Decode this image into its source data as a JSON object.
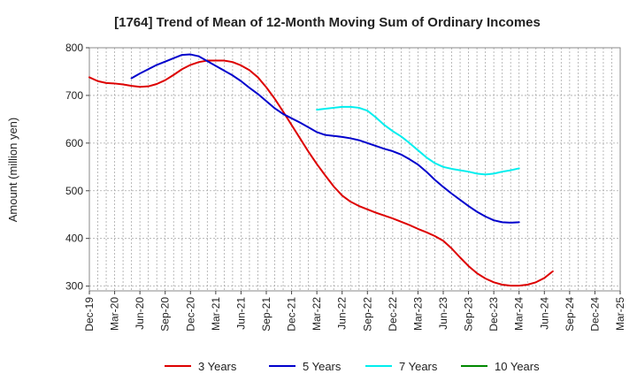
{
  "chart_data": {
    "type": "line",
    "title": "[1764]  Trend of Mean of 12-Month Moving Sum of Ordinary Incomes",
    "xlabel": "",
    "ylabel": "Amount (million yen)",
    "ylim": [
      290,
      800
    ],
    "yticks": [
      300,
      400,
      500,
      600,
      700,
      800
    ],
    "x_ticks": [
      "Dec-19",
      "Mar-20",
      "Jun-20",
      "Sep-20",
      "Dec-20",
      "Mar-21",
      "Jun-21",
      "Sep-21",
      "Dec-21",
      "Mar-22",
      "Jun-22",
      "Sep-22",
      "Dec-22",
      "Mar-23",
      "Jun-23",
      "Sep-23",
      "Dec-23",
      "Mar-24",
      "Jun-24",
      "Sep-24",
      "Dec-24",
      "Mar-25"
    ],
    "grid": true,
    "legend_position": "bottom",
    "series": [
      {
        "name": "3 Years",
        "color": "#dd0000",
        "values": [
          738,
          730,
          726,
          725,
          723,
          720,
          718,
          719,
          724,
          732,
          743,
          755,
          764,
          770,
          773,
          773,
          773,
          770,
          763,
          753,
          738,
          717,
          693,
          666,
          638,
          610,
          582,
          556,
          532,
          509,
          490,
          477,
          468,
          461,
          454,
          448,
          442,
          435,
          428,
          420,
          413,
          405,
          395,
          379,
          360,
          342,
          327,
          316,
          308,
          303,
          301,
          301,
          303,
          308,
          317,
          331
        ]
      },
      {
        "name": "5 Years",
        "color": "#0000cc",
        "values": [
          null,
          null,
          null,
          null,
          null,
          736,
          746,
          755,
          764,
          771,
          778,
          785,
          786,
          782,
          772,
          762,
          752,
          742,
          730,
          716,
          703,
          688,
          673,
          661,
          652,
          643,
          633,
          623,
          617,
          615,
          613,
          610,
          606,
          600,
          594,
          588,
          583,
          576,
          566,
          555,
          540,
          523,
          508,
          494,
          481,
          468,
          456,
          446,
          438,
          434,
          433,
          434
        ]
      },
      {
        "name": "7 Years",
        "color": "#00eeee",
        "values": [
          null,
          null,
          null,
          null,
          null,
          null,
          null,
          null,
          null,
          null,
          null,
          null,
          null,
          null,
          null,
          null,
          null,
          null,
          null,
          null,
          null,
          null,
          null,
          null,
          null,
          null,
          null,
          670,
          672,
          674,
          676,
          676,
          674,
          668,
          654,
          638,
          625,
          614,
          600,
          585,
          570,
          558,
          550,
          546,
          543,
          540,
          536,
          534,
          536,
          540,
          543,
          547
        ]
      },
      {
        "name": "10 Years",
        "color": "#008800",
        "values": []
      }
    ]
  }
}
